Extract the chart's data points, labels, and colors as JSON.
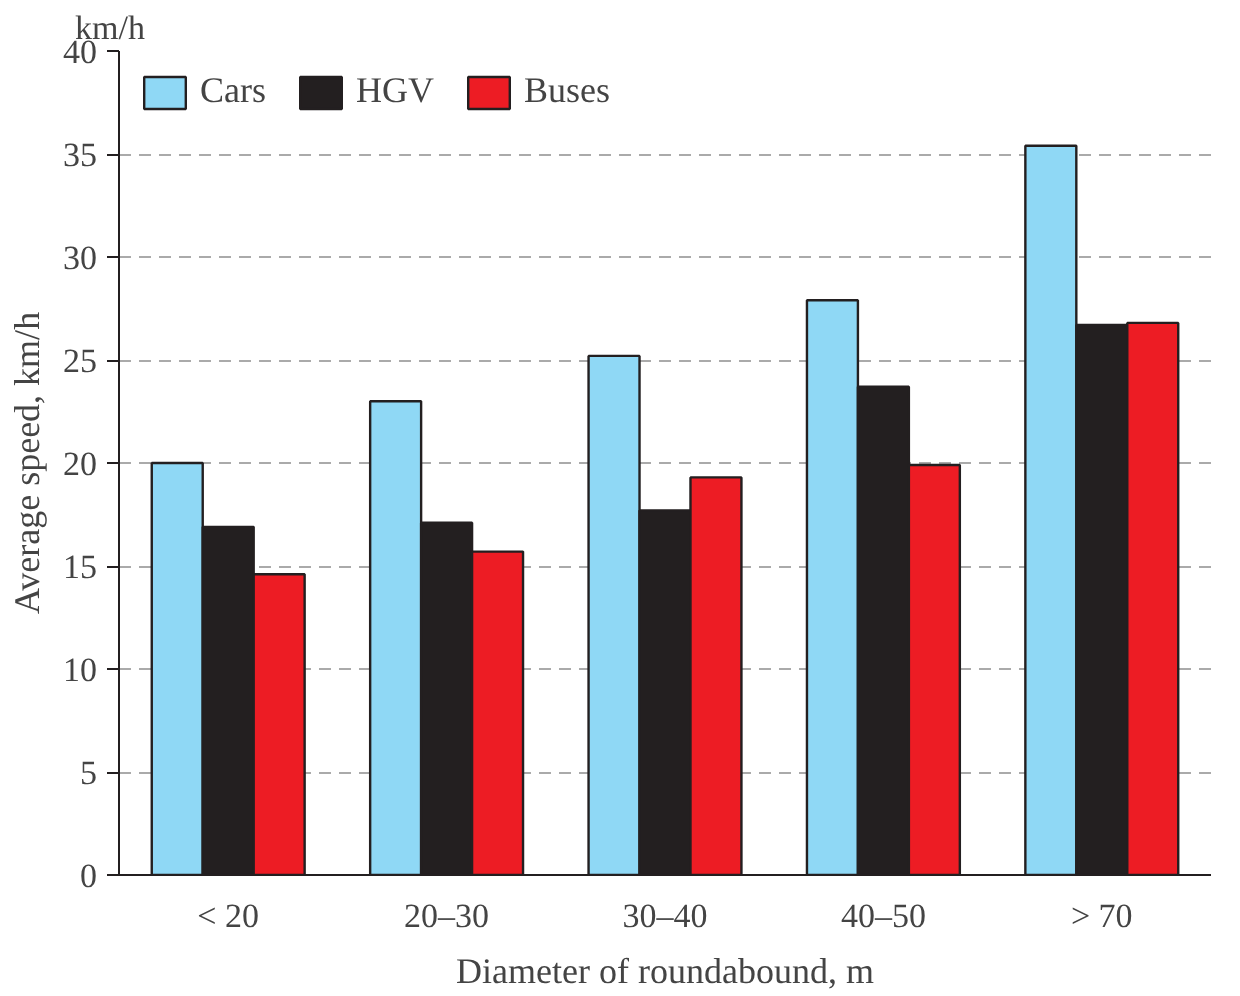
{
  "chart_data": {
    "type": "bar",
    "xlabel": "Diameter of roundabound, m",
    "ylabel": "Average speed, km/h",
    "annotations": [
      "km/h"
    ],
    "categories": [
      "< 20",
      "20–30",
      "30–40",
      "40–50",
      "> 70"
    ],
    "series": [
      {
        "name": "Cars",
        "color": "#8fd8f5",
        "values": [
          20,
          23,
          25.2,
          27.9,
          35.4
        ]
      },
      {
        "name": "HGV",
        "color": "#231f20",
        "values": [
          16.9,
          17.1,
          17.7,
          23.7,
          26.7
        ]
      },
      {
        "name": "Buses",
        "color": "#ed1c24",
        "values": [
          14.6,
          15.7,
          19.3,
          19.9,
          26.8
        ]
      }
    ],
    "ylim": [
      0,
      40
    ],
    "yticks": [
      0,
      5,
      10,
      15,
      20,
      25,
      30,
      35,
      40
    ],
    "grid": "y",
    "legend": "top left"
  }
}
